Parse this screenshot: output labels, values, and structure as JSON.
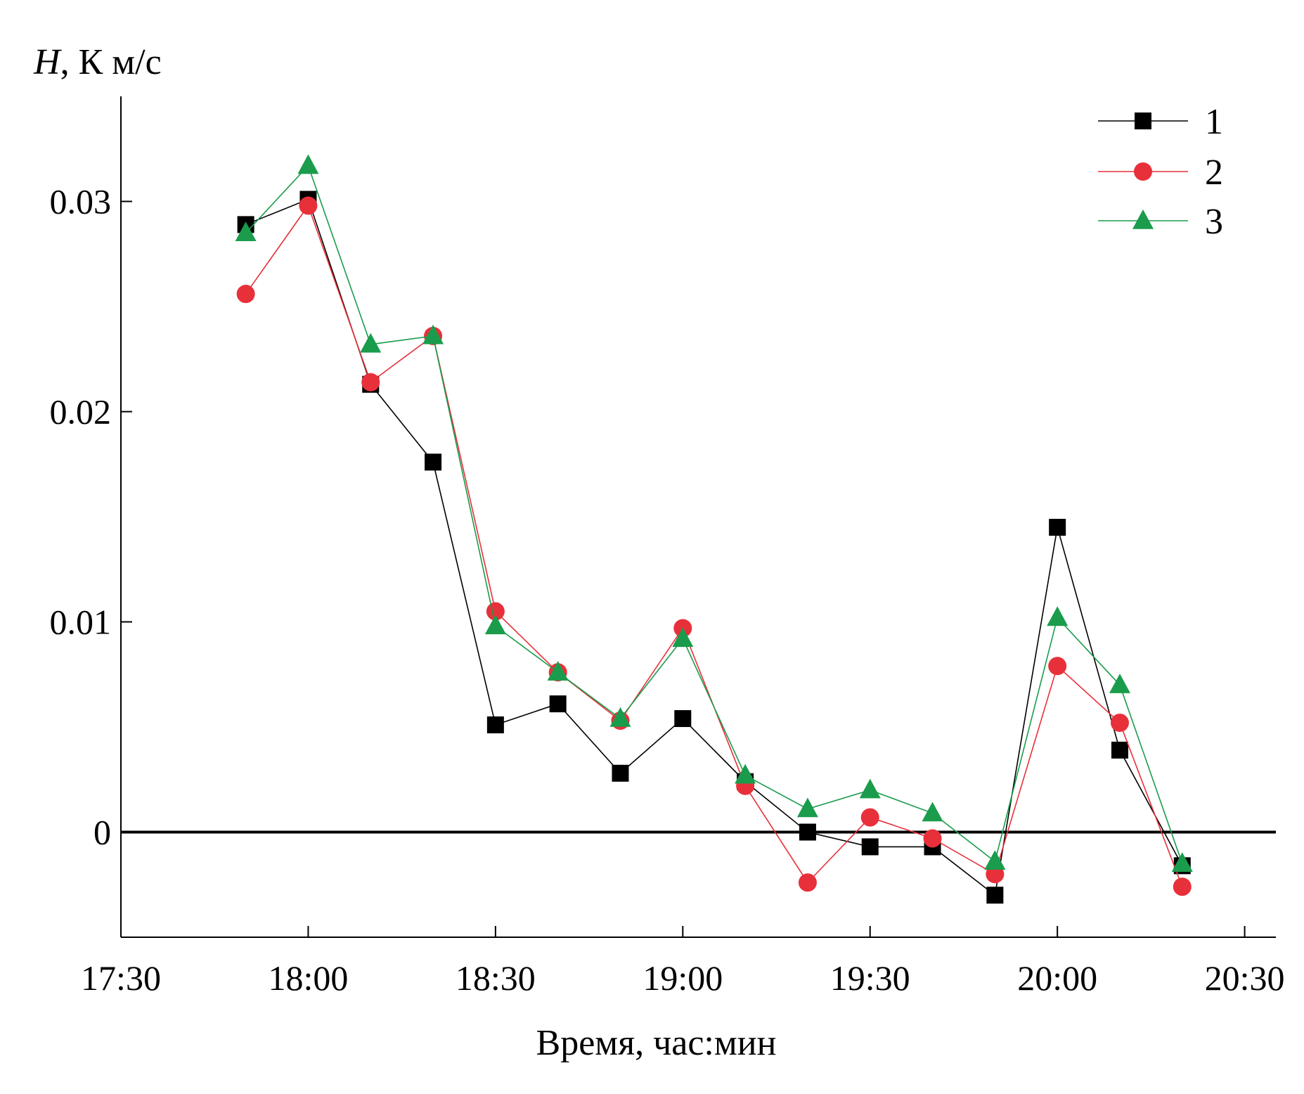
{
  "chart_data": {
    "type": "line",
    "ylabel_symbol": "H",
    "ylabel_rest": ", К м/с",
    "xlabel": "Время, час:мин",
    "xlim": [
      "17:30",
      "20:35"
    ],
    "ylim": [
      -0.005,
      0.035
    ],
    "x_ticks": [
      "17:30",
      "18:00",
      "18:30",
      "19:00",
      "19:30",
      "20:00",
      "20:30"
    ],
    "y_ticks": [
      {
        "value": 0,
        "label": "0"
      },
      {
        "value": 0.01,
        "label": "0.01"
      },
      {
        "value": 0.02,
        "label": "0.02"
      },
      {
        "value": 0.03,
        "label": "0.03"
      }
    ],
    "zero_line": true,
    "grid": false,
    "legend_position": "top-right",
    "x": [
      "17:50",
      "18:00",
      "18:10",
      "18:20",
      "18:30",
      "18:40",
      "18:50",
      "19:00",
      "19:10",
      "19:20",
      "19:30",
      "19:40",
      "19:50",
      "20:00",
      "20:10",
      "20:20"
    ],
    "series": [
      {
        "name": "1",
        "marker": "square",
        "color": "#000000",
        "values": [
          0.0289,
          0.0301,
          0.0213,
          0.0176,
          0.0051,
          0.0061,
          0.0028,
          0.0054,
          0.0024,
          0.0,
          -0.0007,
          -0.0007,
          -0.003,
          0.0145,
          0.0039,
          -0.0016
        ]
      },
      {
        "name": "2",
        "marker": "circle",
        "color": "#e8303a",
        "values": [
          0.0256,
          0.0298,
          0.0214,
          0.0236,
          0.0105,
          0.0076,
          0.0053,
          0.0097,
          0.0022,
          -0.0024,
          0.0007,
          -0.0003,
          -0.002,
          0.0079,
          0.0052,
          -0.0026
        ]
      },
      {
        "name": "3",
        "marker": "triangle",
        "color": "#1a9c4c",
        "values": [
          0.0285,
          0.0317,
          0.0232,
          0.0236,
          0.0098,
          0.0076,
          0.0054,
          0.0092,
          0.0027,
          0.0011,
          0.002,
          0.0009,
          -0.0014,
          0.0102,
          0.007,
          -0.0015
        ]
      }
    ]
  }
}
